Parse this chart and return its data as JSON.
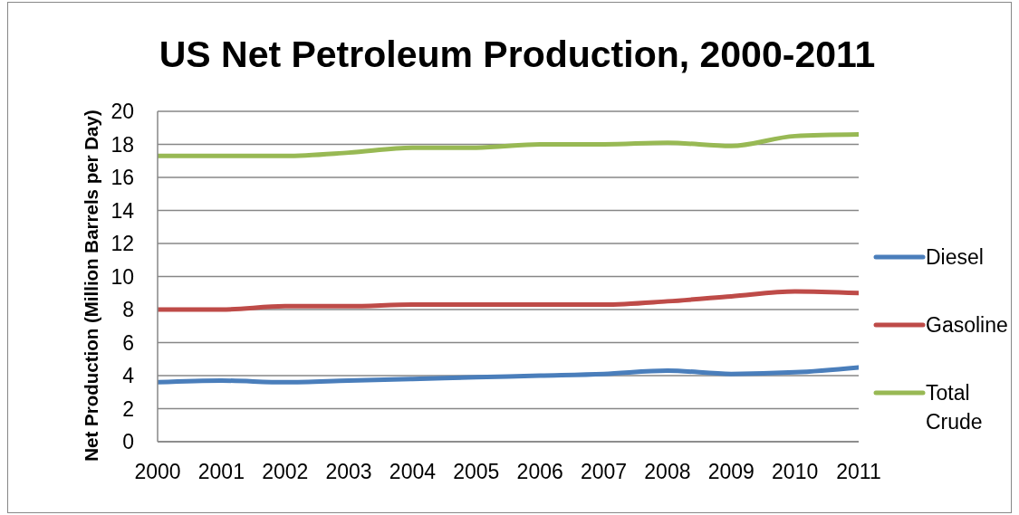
{
  "chart_data": {
    "type": "line",
    "title": "US Net Petroleum Production, 2000-2011",
    "ylabel": "Net Production (Million Barrels per Day)",
    "categories": [
      "2000",
      "2001",
      "2002",
      "2003",
      "2004",
      "2005",
      "2006",
      "2007",
      "2008",
      "2009",
      "2010",
      "2011"
    ],
    "series": [
      {
        "name": "Diesel",
        "color": "#4a7ebb",
        "values": [
          3.6,
          3.7,
          3.6,
          3.7,
          3.8,
          3.9,
          4.0,
          4.1,
          4.3,
          4.1,
          4.2,
          4.5
        ]
      },
      {
        "name": "Gasoline",
        "color": "#be4b48",
        "values": [
          8.0,
          8.0,
          8.2,
          8.2,
          8.3,
          8.3,
          8.3,
          8.3,
          8.5,
          8.8,
          9.1,
          9.0
        ]
      },
      {
        "name": "Total Crude",
        "color": "#98b954",
        "values": [
          17.3,
          17.3,
          17.3,
          17.5,
          17.8,
          17.8,
          18.0,
          18.0,
          18.1,
          17.9,
          18.5,
          18.6
        ]
      }
    ],
    "ylim": [
      0,
      20
    ],
    "yticks": [
      0,
      2,
      4,
      6,
      8,
      10,
      12,
      14,
      16,
      18,
      20
    ],
    "grid": "y",
    "legend": "right",
    "marker": "none",
    "line_style": "solid"
  }
}
